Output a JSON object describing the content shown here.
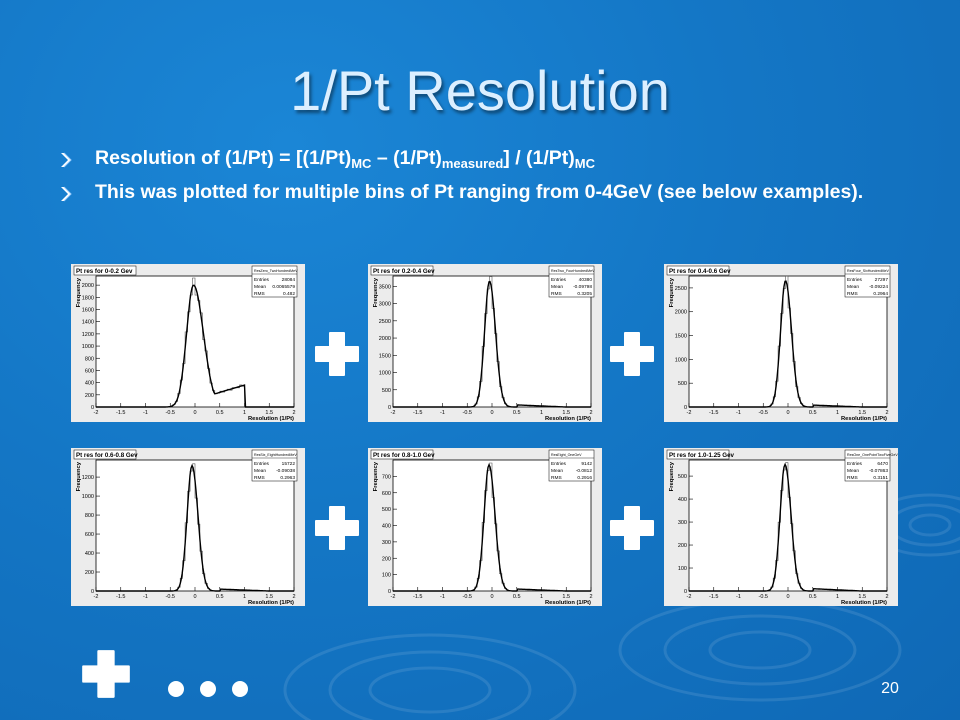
{
  "slide": {
    "title": "1/Pt Resolution",
    "page_number": "20",
    "colors": {
      "background": "#1477c6",
      "title": "#dcefff",
      "text": "#ffffff",
      "plot_bg": "#ececec"
    },
    "bullet_icon": "arrow-bullet-icon",
    "bullets": [
      {
        "parts": {
          "a": "Resolution of (1/Pt)   =   [(1/Pt)",
          "s1": "MC",
          "b": " – (1/Pt)",
          "s2": "measured",
          "c": "] / (1/Pt)",
          "s3": "MC"
        }
      },
      {
        "text": "This was plotted for multiple bins of Pt ranging from 0-4GeV (see below examples)."
      }
    ],
    "connectors": [
      "plus-icon",
      "plus-icon",
      "plus-icon",
      "plus-icon",
      "plus-icon"
    ],
    "ellipsis_dots": 3
  },
  "chart_data": [
    {
      "type": "line",
      "title": "Pt res for 0-0.2 Gev",
      "stats": {
        "name": "ResZero_TwoHundredMeV",
        "entries": "28084",
        "mean": "0.0065579",
        "rms": "0.482"
      },
      "stat_labels": [
        "Entries",
        "Mean",
        "RMS"
      ],
      "xlabel": "Resolution (1/Pt)",
      "ylabel": "Frequency",
      "xlim": [
        -2,
        2
      ],
      "ylim": [
        0,
        2150
      ],
      "xticks": [
        "-2",
        "-1.5",
        "-1",
        "-0.5",
        "0",
        "0.5",
        "1",
        "1.5",
        "2"
      ],
      "yticks": [
        0,
        200,
        400,
        600,
        800,
        1000,
        1200,
        1400,
        1600,
        1800,
        2000
      ],
      "peak": {
        "center": -0.03,
        "height": 2000,
        "sigma_left": 0.14,
        "sigma_right": 0.2,
        "tail_level": 180,
        "tail_start": 0.25,
        "tail_end": 1.0,
        "tail_end_level": 360,
        "cutoff": 1.0
      }
    },
    {
      "type": "line",
      "title": "Pt res for 0.2-0.4 Gev",
      "stats": {
        "name": "ResTwo_FourHundredMeV",
        "entries": "40380",
        "mean": "-0.09798",
        "rms": "0.3205"
      },
      "stat_labels": [
        "Entries",
        "Mean",
        "RMS"
      ],
      "xlabel": "Resolution (1/Pt)",
      "ylabel": "Frequency",
      "xlim": [
        -2,
        2
      ],
      "ylim": [
        0,
        3800
      ],
      "xticks": [
        "-2",
        "-1.5",
        "-1",
        "-0.5",
        "0",
        "0.5",
        "1",
        "1.5",
        "2"
      ],
      "yticks": [
        0,
        500,
        1000,
        1500,
        2000,
        2500,
        3000,
        3500
      ],
      "peak": {
        "center": -0.05,
        "height": 3650,
        "sigma_left": 0.1,
        "sigma_right": 0.12,
        "tail_level": 60,
        "tail_start": 0.5,
        "tail_end": 1.0,
        "tail_end_level": 30,
        "cutoff": 2.0
      }
    },
    {
      "type": "line",
      "title": "Pt res for 0.4-0.6 Gev",
      "stats": {
        "name": "ResFour_SixHundredMeV",
        "entries": "27297",
        "mean": "-0.09224",
        "rms": "0.2964"
      },
      "stat_labels": [
        "Entries",
        "Mean",
        "RMS"
      ],
      "xlabel": "Resolution (1/Pt)",
      "ylabel": "Frequency",
      "xlim": [
        -2,
        2
      ],
      "ylim": [
        0,
        2750
      ],
      "xticks": [
        "-2",
        "-1.5",
        "-1",
        "-0.5",
        "0",
        "0.5",
        "1",
        "1.5",
        "2"
      ],
      "yticks": [
        0,
        500,
        1000,
        1500,
        2000,
        2500
      ],
      "peak": {
        "center": -0.05,
        "height": 2650,
        "sigma_left": 0.1,
        "sigma_right": 0.12,
        "tail_level": 40,
        "tail_start": 0.5,
        "tail_end": 1.0,
        "tail_end_level": 20,
        "cutoff": 2.0
      }
    },
    {
      "type": "line",
      "title": "Pt res for 0.6-0.8 Gev",
      "stats": {
        "name": "ResSix_EightHundredMeV",
        "entries": "15722",
        "mean": "-0.09038",
        "rms": "0.2963"
      },
      "stat_labels": [
        "Entries",
        "Mean",
        "RMS"
      ],
      "xlabel": "Resolution (1/Pt)",
      "ylabel": "Frequency",
      "xlim": [
        -2,
        2
      ],
      "ylim": [
        0,
        1380
      ],
      "xticks": [
        "-2",
        "-1.5",
        "-1",
        "-0.5",
        "0",
        "0.5",
        "1",
        "1.5",
        "2"
      ],
      "yticks": [
        0,
        200,
        400,
        600,
        800,
        1000,
        1200
      ],
      "peak": {
        "center": -0.06,
        "height": 1320,
        "sigma_left": 0.1,
        "sigma_right": 0.12,
        "tail_level": 20,
        "tail_start": 0.5,
        "tail_end": 1.0,
        "tail_end_level": 10,
        "cutoff": 2.0
      }
    },
    {
      "type": "line",
      "title": "Pt res for 0.8-1.0 Gev",
      "stats": {
        "name": "ResEight_OneGeV",
        "entries": "9142",
        "mean": "-0.0812",
        "rms": "0.2916"
      },
      "stat_labels": [
        "Entries",
        "Mean",
        "RMS"
      ],
      "xlabel": "Resolution (1/Pt)",
      "ylabel": "Frequency",
      "xlim": [
        -2,
        2
      ],
      "ylim": [
        0,
        800
      ],
      "xticks": [
        "-2",
        "-1.5",
        "-1",
        "-0.5",
        "0",
        "0.5",
        "1",
        "1.5",
        "2"
      ],
      "yticks": [
        0,
        100,
        200,
        300,
        400,
        500,
        600,
        700
      ],
      "peak": {
        "center": -0.06,
        "height": 770,
        "sigma_left": 0.1,
        "sigma_right": 0.12,
        "tail_level": 12,
        "tail_start": 0.5,
        "tail_end": 1.0,
        "tail_end_level": 6,
        "cutoff": 2.0
      }
    },
    {
      "type": "line",
      "title": "Pt res for 1.0-1.25 Gev",
      "stats": {
        "name": "ResOne_OnePointTwoFiveGeV",
        "entries": "6470",
        "mean": "-0.07863",
        "rms": "0.3151"
      },
      "stat_labels": [
        "Entries",
        "Mean",
        "RMS"
      ],
      "xlabel": "Resolution (1/Pt)",
      "ylabel": "Frequency",
      "xlim": [
        -2,
        2
      ],
      "ylim": [
        0,
        570
      ],
      "xticks": [
        "-2",
        "-1.5",
        "-1",
        "-0.5",
        "0",
        "0.5",
        "1",
        "1.5",
        "2"
      ],
      "yticks": [
        0,
        100,
        200,
        300,
        400,
        500
      ],
      "peak": {
        "center": -0.06,
        "height": 550,
        "sigma_left": 0.1,
        "sigma_right": 0.12,
        "tail_level": 10,
        "tail_start": 0.5,
        "tail_end": 1.0,
        "tail_end_level": 5,
        "cutoff": 2.0
      }
    }
  ]
}
